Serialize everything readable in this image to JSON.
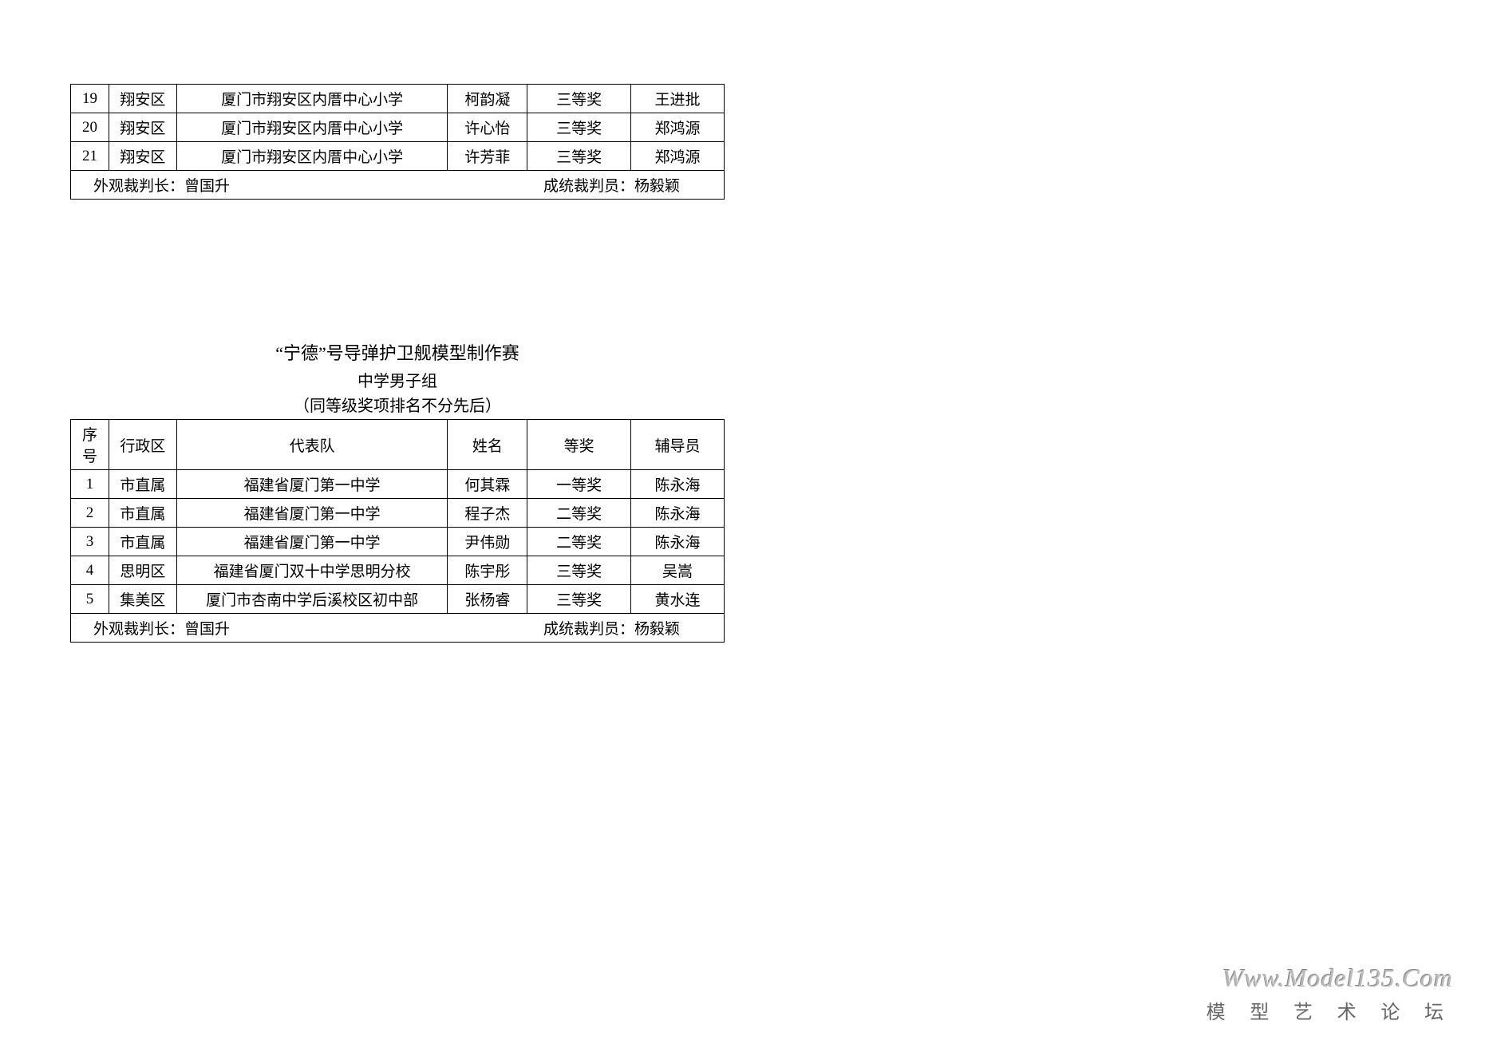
{
  "table1": {
    "rows": [
      {
        "no": "19",
        "district": "翔安区",
        "team": "厦门市翔安区内厝中心小学",
        "name": "柯韵凝",
        "award": "三等奖",
        "advisor": "王进批"
      },
      {
        "no": "20",
        "district": "翔安区",
        "team": "厦门市翔安区内厝中心小学",
        "name": "许心怡",
        "award": "三等奖",
        "advisor": "郑鸿源"
      },
      {
        "no": "21",
        "district": "翔安区",
        "team": "厦门市翔安区内厝中心小学",
        "name": "许芳菲",
        "award": "三等奖",
        "advisor": "郑鸿源"
      }
    ],
    "judge_left": "外观裁判长：曾国升",
    "judge_right": "成统裁判员：杨毅颖"
  },
  "section2": {
    "title": "“宁德”号导弹护卫舰模型制作赛",
    "subtitle": "中学男子组",
    "note": "（同等级奖项排名不分先后）"
  },
  "table2": {
    "headers": {
      "no": "序号",
      "district": "行政区",
      "team": "代表队",
      "name": "姓名",
      "award": "等奖",
      "advisor": "辅导员"
    },
    "rows": [
      {
        "no": "1",
        "district": "市直属",
        "team": "福建省厦门第一中学",
        "name": "何其霖",
        "award": "一等奖",
        "advisor": "陈永海"
      },
      {
        "no": "2",
        "district": "市直属",
        "team": "福建省厦门第一中学",
        "name": "程子杰",
        "award": "二等奖",
        "advisor": "陈永海"
      },
      {
        "no": "3",
        "district": "市直属",
        "team": "福建省厦门第一中学",
        "name": "尹伟勋",
        "award": "二等奖",
        "advisor": "陈永海"
      },
      {
        "no": "4",
        "district": "思明区",
        "team": "福建省厦门双十中学思明分校",
        "name": "陈宇彤",
        "award": "三等奖",
        "advisor": "吴嵩"
      },
      {
        "no": "5",
        "district": "集美区",
        "team": "厦门市杏南中学后溪校区初中部",
        "name": "张杨睿",
        "award": "三等奖",
        "advisor": "黄水连"
      }
    ],
    "judge_left": "外观裁判长：曾国升",
    "judge_right": "成统裁判员：杨毅颖"
  },
  "watermark": {
    "url": "Www.Model135.Com",
    "text": "模 型 艺 术 论 坛"
  }
}
